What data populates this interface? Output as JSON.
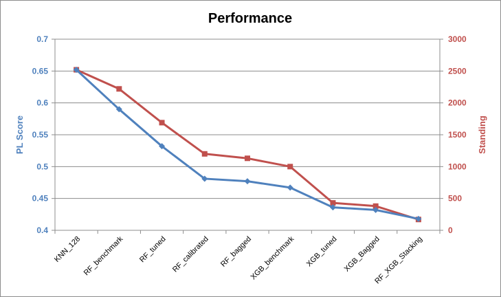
{
  "chart_data": {
    "type": "line",
    "title": "Performance",
    "categories": [
      "KNN_128",
      "RF_benchmark",
      "RF_tuned",
      "RF_calibrated",
      "RF_bagged",
      "XGB_benchmark",
      "XGB_tuned",
      "XGB_Bagged",
      "RF_XGB_Stacking"
    ],
    "y_left": {
      "label": "PL Score",
      "range": [
        0.4,
        0.7
      ],
      "ticks": [
        "0.4",
        "0.45",
        "0.5",
        "0.55",
        "0.6",
        "0.65",
        "0.7"
      ],
      "color": "#4f81bd"
    },
    "y_right": {
      "label": "Standing",
      "range": [
        0,
        3000
      ],
      "ticks": [
        "0",
        "500",
        "1000",
        "1500",
        "2000",
        "2500",
        "3000"
      ],
      "color": "#c0504d"
    },
    "series": [
      {
        "axis": "left",
        "color": "#4f81bd",
        "marker": "diamond",
        "values": [
          0.652,
          0.59,
          0.532,
          0.481,
          0.477,
          0.467,
          0.436,
          0.432,
          0.418
        ]
      },
      {
        "axis": "right",
        "color": "#c0504d",
        "marker": "square",
        "values": [
          2520,
          2220,
          1690,
          1200,
          1130,
          1000,
          430,
          380,
          170
        ]
      }
    ],
    "grid": "horizontal",
    "legend": "none"
  }
}
